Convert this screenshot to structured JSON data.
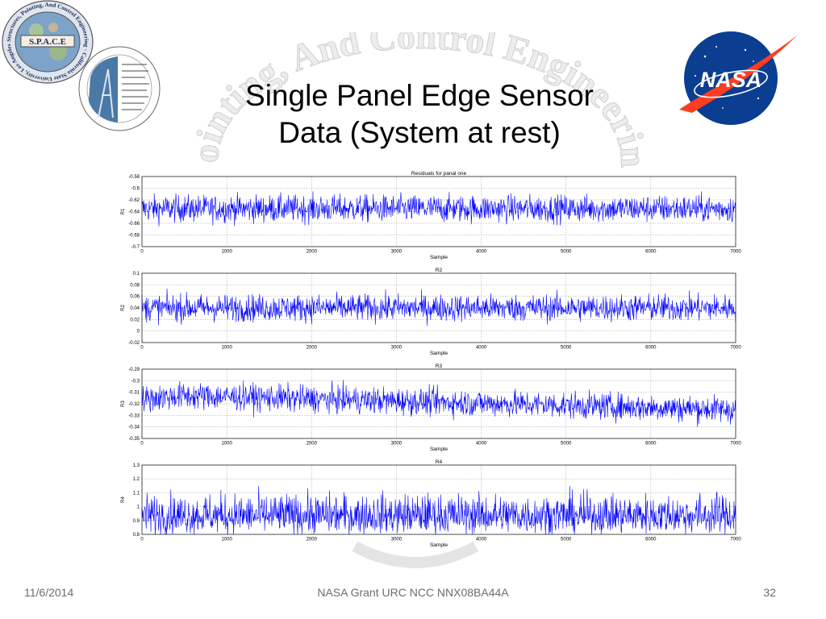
{
  "slide": {
    "title_line1": "Single Panel Edge Sensor",
    "title_line2": "Data (System at rest)",
    "footer_date": "11/6/2014",
    "footer_center": "NASA Grant URC NCC NNX08BA44A",
    "page_number": "32",
    "logo_text": {
      "space": "S.P.A.C.E",
      "space_ring": "Structures, Pointing, And Control Engineering · California State University, Los Angeles",
      "nasa": "NASA",
      "watermark": "Pointing, And Control Engineering"
    }
  },
  "chart_data": [
    {
      "type": "line",
      "title": "Residuals for panal one",
      "xlabel": "Sample",
      "ylabel": "R1",
      "xlim": [
        0,
        7000
      ],
      "ylim": [
        -0.7,
        -0.58
      ],
      "xticks": [
        "0",
        "1000",
        "2000",
        "3000",
        "4000",
        "5000",
        "6000",
        "7000"
      ],
      "yticks": [
        "-0.58",
        "-0.6",
        "-0.62",
        "-0.64",
        "-0.66",
        "-0.68",
        "-0.7"
      ],
      "grid": true,
      "color": "#0000ff",
      "series": [
        {
          "trend": [
            [
              0,
              -0.635
            ],
            [
              7000,
              -0.635
            ]
          ],
          "noise_band": [
            -0.66,
            -0.61
          ],
          "n_samples": 7000
        }
      ]
    },
    {
      "type": "line",
      "title": "R2",
      "xlabel": "Sample",
      "ylabel": "R2",
      "xlim": [
        0,
        7000
      ],
      "ylim": [
        -0.02,
        0.1
      ],
      "xticks": [
        "0",
        "1000",
        "2000",
        "3000",
        "4000",
        "5000",
        "6000",
        "7000"
      ],
      "yticks": [
        "0.1",
        "0.08",
        "0.06",
        "0.04",
        "0.02",
        "0",
        "-0.02"
      ],
      "grid": true,
      "color": "#0000ff",
      "series": [
        {
          "trend": [
            [
              0,
              0.04
            ],
            [
              7000,
              0.04
            ]
          ],
          "noise_band": [
            0.015,
            0.065
          ],
          "n_samples": 7000
        }
      ]
    },
    {
      "type": "line",
      "title": "R3",
      "xlabel": "Sample",
      "ylabel": "R3",
      "xlim": [
        0,
        7000
      ],
      "ylim": [
        -0.35,
        -0.29
      ],
      "xticks": [
        "0",
        "1000",
        "2000",
        "3000",
        "4000",
        "5000",
        "6000",
        "7000"
      ],
      "yticks": [
        "-0.29",
        "-0.3",
        "-0.31",
        "-0.32",
        "-0.33",
        "-0.34",
        "-0.35"
      ],
      "grid": true,
      "color": "#0000ff",
      "series": [
        {
          "trend": [
            [
              0,
              -0.316
            ],
            [
              500,
              -0.313
            ],
            [
              7000,
              -0.325
            ]
          ],
          "noise_band": [
            -0.33,
            -0.305
          ],
          "n_samples": 7000
        }
      ]
    },
    {
      "type": "line",
      "title": "R4",
      "xlabel": "Sample",
      "ylabel": "R4",
      "xlim": [
        0,
        7000
      ],
      "ylim": [
        0.8,
        1.3
      ],
      "xticks": [
        "0",
        "1000",
        "2000",
        "3000",
        "4000",
        "5000",
        "6000",
        "7000"
      ],
      "yticks": [
        "1.3",
        "1.2",
        "1.1",
        "1",
        "0.9",
        "0.8"
      ],
      "grid": true,
      "color": "#0000ff",
      "series": [
        {
          "trend": [
            [
              0,
              0.93
            ],
            [
              7000,
              0.93
            ]
          ],
          "noise_band": [
            0.86,
            1.12
          ],
          "n_samples": 7000
        }
      ]
    }
  ]
}
